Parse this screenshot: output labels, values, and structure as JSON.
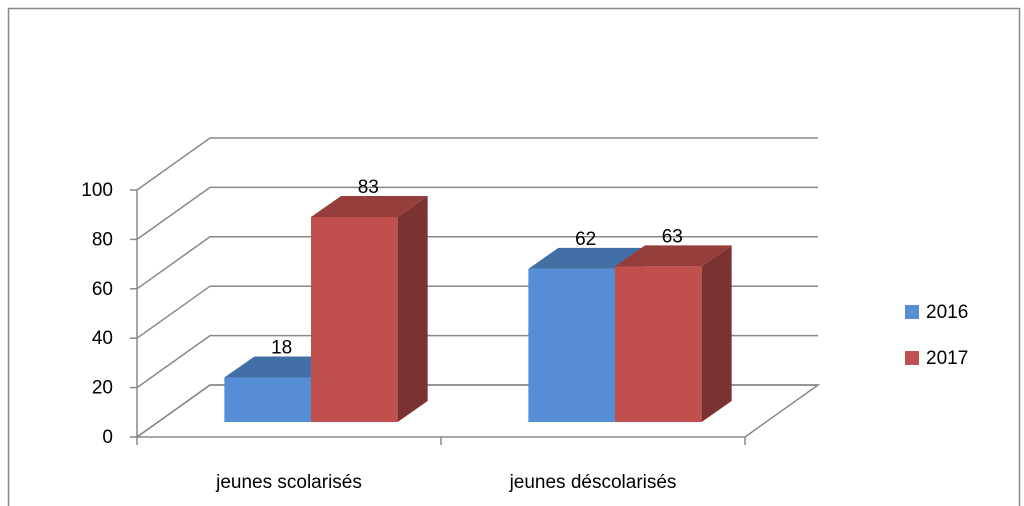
{
  "chart_data": {
    "type": "bar",
    "categories": [
      "jeunes scolarisés",
      "jeunes déscolarisés"
    ],
    "series": [
      {
        "name": "2016",
        "color": "#558ed5",
        "values": [
          18,
          62
        ]
      },
      {
        "name": "2017",
        "color": "#c0504d",
        "values": [
          83,
          63
        ]
      }
    ],
    "ylim": [
      0,
      100
    ],
    "yticks": [
      0,
      20,
      40,
      60,
      80,
      100
    ],
    "grid": true,
    "legend": "right"
  }
}
